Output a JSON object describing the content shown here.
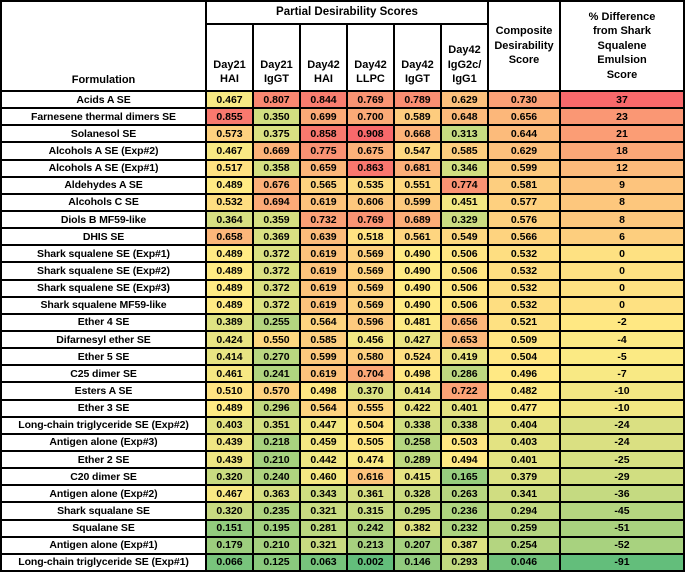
{
  "colors": {
    "scale_low": "#63BE7B",
    "scale_mid": "#FFEB84",
    "scale_high": "#F8696B",
    "border": "#000000",
    "row_label_bg": "#FFFFFF"
  },
  "chart_data": {
    "type": "table",
    "subtype": "heatmap",
    "legend_position": "none",
    "header": {
      "formulation": "Formulation",
      "partial_group": "Partial Desirability Scores",
      "score_columns": [
        "Day21\nHAI",
        "Day21\nIgGT",
        "Day42\nHAI",
        "Day42\nLLPC",
        "Day42\nIgGT",
        "Day42\nIgG2c/\nIgG1"
      ],
      "composite": "Composite\nDesirability\nScore",
      "pct_diff": "% Difference\nfrom Shark\nSqualene\nEmulsion\nScore"
    },
    "rows": [
      {
        "formulation": "Acids A SE",
        "scores": [
          0.467,
          0.807,
          0.844,
          0.769,
          0.789,
          0.629
        ],
        "composite": 0.73,
        "pct_diff": 37
      },
      {
        "formulation": "Farnesene thermal dimers SE",
        "scores": [
          0.855,
          0.35,
          0.699,
          0.7,
          0.589,
          0.648
        ],
        "composite": 0.656,
        "pct_diff": 23
      },
      {
        "formulation": "Solanesol SE",
        "scores": [
          0.573,
          0.375,
          0.858,
          0.908,
          0.668,
          0.313
        ],
        "composite": 0.644,
        "pct_diff": 21
      },
      {
        "formulation": "Alcohols A SE (Exp#2)",
        "scores": [
          0.467,
          0.669,
          0.775,
          0.675,
          0.547,
          0.585
        ],
        "composite": 0.629,
        "pct_diff": 18
      },
      {
        "formulation": "Alcohols A SE (Exp#1)",
        "scores": [
          0.517,
          0.358,
          0.659,
          0.863,
          0.681,
          0.346
        ],
        "composite": 0.599,
        "pct_diff": 12
      },
      {
        "formulation": "Aldehydes A SE",
        "scores": [
          0.489,
          0.676,
          0.565,
          0.535,
          0.551,
          0.774
        ],
        "composite": 0.581,
        "pct_diff": 9
      },
      {
        "formulation": "Alcohols C SE",
        "scores": [
          0.532,
          0.694,
          0.619,
          0.606,
          0.599,
          0.451
        ],
        "composite": 0.577,
        "pct_diff": 8
      },
      {
        "formulation": "Diols B MF59-like",
        "scores": [
          0.364,
          0.359,
          0.732,
          0.769,
          0.689,
          0.329
        ],
        "composite": 0.576,
        "pct_diff": 8
      },
      {
        "formulation": "DHIS SE",
        "scores": [
          0.658,
          0.369,
          0.639,
          0.518,
          0.561,
          0.549
        ],
        "composite": 0.566,
        "pct_diff": 6
      },
      {
        "formulation": "Shark squalene SE (Exp#1)",
        "scores": [
          0.489,
          0.372,
          0.619,
          0.569,
          0.49,
          0.506
        ],
        "composite": 0.532,
        "pct_diff": 0
      },
      {
        "formulation": "Shark squalene SE (Exp#2)",
        "scores": [
          0.489,
          0.372,
          0.619,
          0.569,
          0.49,
          0.506
        ],
        "composite": 0.532,
        "pct_diff": 0
      },
      {
        "formulation": "Shark squalene SE (Exp#3)",
        "scores": [
          0.489,
          0.372,
          0.619,
          0.569,
          0.49,
          0.506
        ],
        "composite": 0.532,
        "pct_diff": 0
      },
      {
        "formulation": "Shark squalene MF59-like",
        "scores": [
          0.489,
          0.372,
          0.619,
          0.569,
          0.49,
          0.506
        ],
        "composite": 0.532,
        "pct_diff": 0
      },
      {
        "formulation": "Ether 4 SE",
        "scores": [
          0.389,
          0.255,
          0.564,
          0.596,
          0.481,
          0.656
        ],
        "composite": 0.521,
        "pct_diff": -2
      },
      {
        "formulation": "Difarnesyl ether SE",
        "scores": [
          0.424,
          0.55,
          0.585,
          0.456,
          0.427,
          0.653
        ],
        "composite": 0.509,
        "pct_diff": -4
      },
      {
        "formulation": "Ether 5 SE",
        "scores": [
          0.414,
          0.27,
          0.599,
          0.58,
          0.524,
          0.419
        ],
        "composite": 0.504,
        "pct_diff": -5
      },
      {
        "formulation": "C25 dimer SE",
        "scores": [
          0.461,
          0.241,
          0.619,
          0.704,
          0.498,
          0.286
        ],
        "composite": 0.496,
        "pct_diff": -7
      },
      {
        "formulation": "Esters A SE",
        "scores": [
          0.51,
          0.57,
          0.498,
          0.37,
          0.414,
          0.722
        ],
        "composite": 0.482,
        "pct_diff": -10
      },
      {
        "formulation": "Ether 3 SE",
        "scores": [
          0.489,
          0.296,
          0.564,
          0.555,
          0.422,
          0.401
        ],
        "composite": 0.477,
        "pct_diff": -10
      },
      {
        "formulation": "Long-chain triglyceride SE (Exp#2)",
        "scores": [
          0.403,
          0.351,
          0.447,
          0.504,
          0.338,
          0.338
        ],
        "composite": 0.404,
        "pct_diff": -24
      },
      {
        "formulation": "Antigen alone (Exp#3)",
        "scores": [
          0.439,
          0.218,
          0.459,
          0.505,
          0.258,
          0.503
        ],
        "composite": 0.403,
        "pct_diff": -24
      },
      {
        "formulation": "Ether 2 SE",
        "scores": [
          0.439,
          0.21,
          0.442,
          0.474,
          0.289,
          0.494
        ],
        "composite": 0.401,
        "pct_diff": -25
      },
      {
        "formulation": "C20 dimer SE",
        "scores": [
          0.32,
          0.24,
          0.46,
          0.616,
          0.415,
          0.165
        ],
        "composite": 0.379,
        "pct_diff": -29
      },
      {
        "formulation": "Antigen alone (Exp#2)",
        "scores": [
          0.467,
          0.363,
          0.343,
          0.361,
          0.328,
          0.263
        ],
        "composite": 0.341,
        "pct_diff": -36
      },
      {
        "formulation": "Shark squalane SE",
        "scores": [
          0.32,
          0.235,
          0.321,
          0.315,
          0.295,
          0.236
        ],
        "composite": 0.294,
        "pct_diff": -45
      },
      {
        "formulation": "Squalane SE",
        "scores": [
          0.151,
          0.195,
          0.281,
          0.242,
          0.382,
          0.232
        ],
        "composite": 0.259,
        "pct_diff": -51
      },
      {
        "formulation": "Antigen alone (Exp#1)",
        "scores": [
          0.179,
          0.21,
          0.321,
          0.213,
          0.207,
          0.387
        ],
        "composite": 0.254,
        "pct_diff": -52
      },
      {
        "formulation": "Long-chain triglyceride SE (Exp#1)",
        "scores": [
          0.066,
          0.125,
          0.063,
          0.002,
          0.146,
          0.293
        ],
        "composite": 0.046,
        "pct_diff": -91
      }
    ]
  }
}
